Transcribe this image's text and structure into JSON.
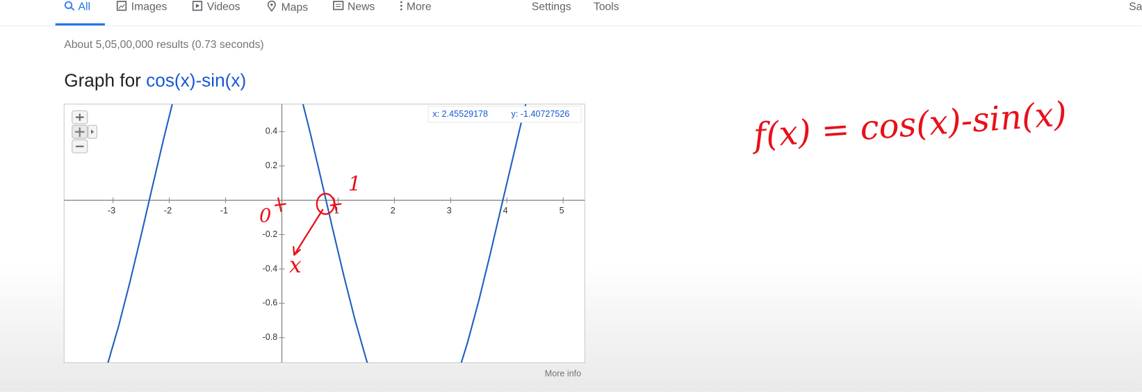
{
  "nav": {
    "tabs": [
      "All",
      "Images",
      "Videos",
      "Maps",
      "News",
      "More"
    ],
    "settings": "Settings",
    "tools": "Tools",
    "account": "Sa"
  },
  "result_stats": "About 5,05,00,000 results (0.73 seconds)",
  "graph_heading": {
    "prefix": "Graph for",
    "query": "cos(x)-sin(x)"
  },
  "chart_data": {
    "type": "line",
    "x": [
      -3.3,
      -3.1,
      -2.9,
      -2.7,
      -2.5,
      -2.3,
      -2.1,
      -1.9,
      null,
      0.3,
      0.5,
      0.7,
      0.9,
      1.1,
      1.3,
      1.5,
      1.6,
      null,
      3.1,
      3.3,
      3.5,
      3.7,
      3.9,
      4.1,
      4.3,
      4.4
    ],
    "values": [
      -1.1452,
      -0.9576,
      -0.7317,
      -0.4767,
      -0.2027,
      0.0794,
      0.3584,
      0.623,
      null,
      0.6598,
      0.3982,
      0.1206,
      -0.1617,
      -0.4376,
      -0.6961,
      -0.9268,
      -1.0288,
      null,
      -1.0407,
      -0.8297,
      -0.5857,
      -0.3183,
      -0.0382,
      0.2382,
      0.5154,
      0.6443
    ],
    "color": "#1f5fbf",
    "xlim": [
      -3.87,
      5.385
    ],
    "ylim": [
      -0.946,
      0.56
    ],
    "xticks": [
      -3,
      -2,
      -1,
      1,
      2,
      3,
      4,
      5
    ],
    "yticks": [
      0.4,
      0.2,
      -0.2,
      -0.4,
      -0.6,
      -0.8
    ],
    "readout": {
      "x": "x: 2.45529178",
      "y": "y: -1.40727526"
    },
    "more_info": "More info"
  },
  "annotations": {
    "formula": "f(x) = cos(x)-sin(x)",
    "zero": "0",
    "one": "1",
    "x_label": "x"
  }
}
